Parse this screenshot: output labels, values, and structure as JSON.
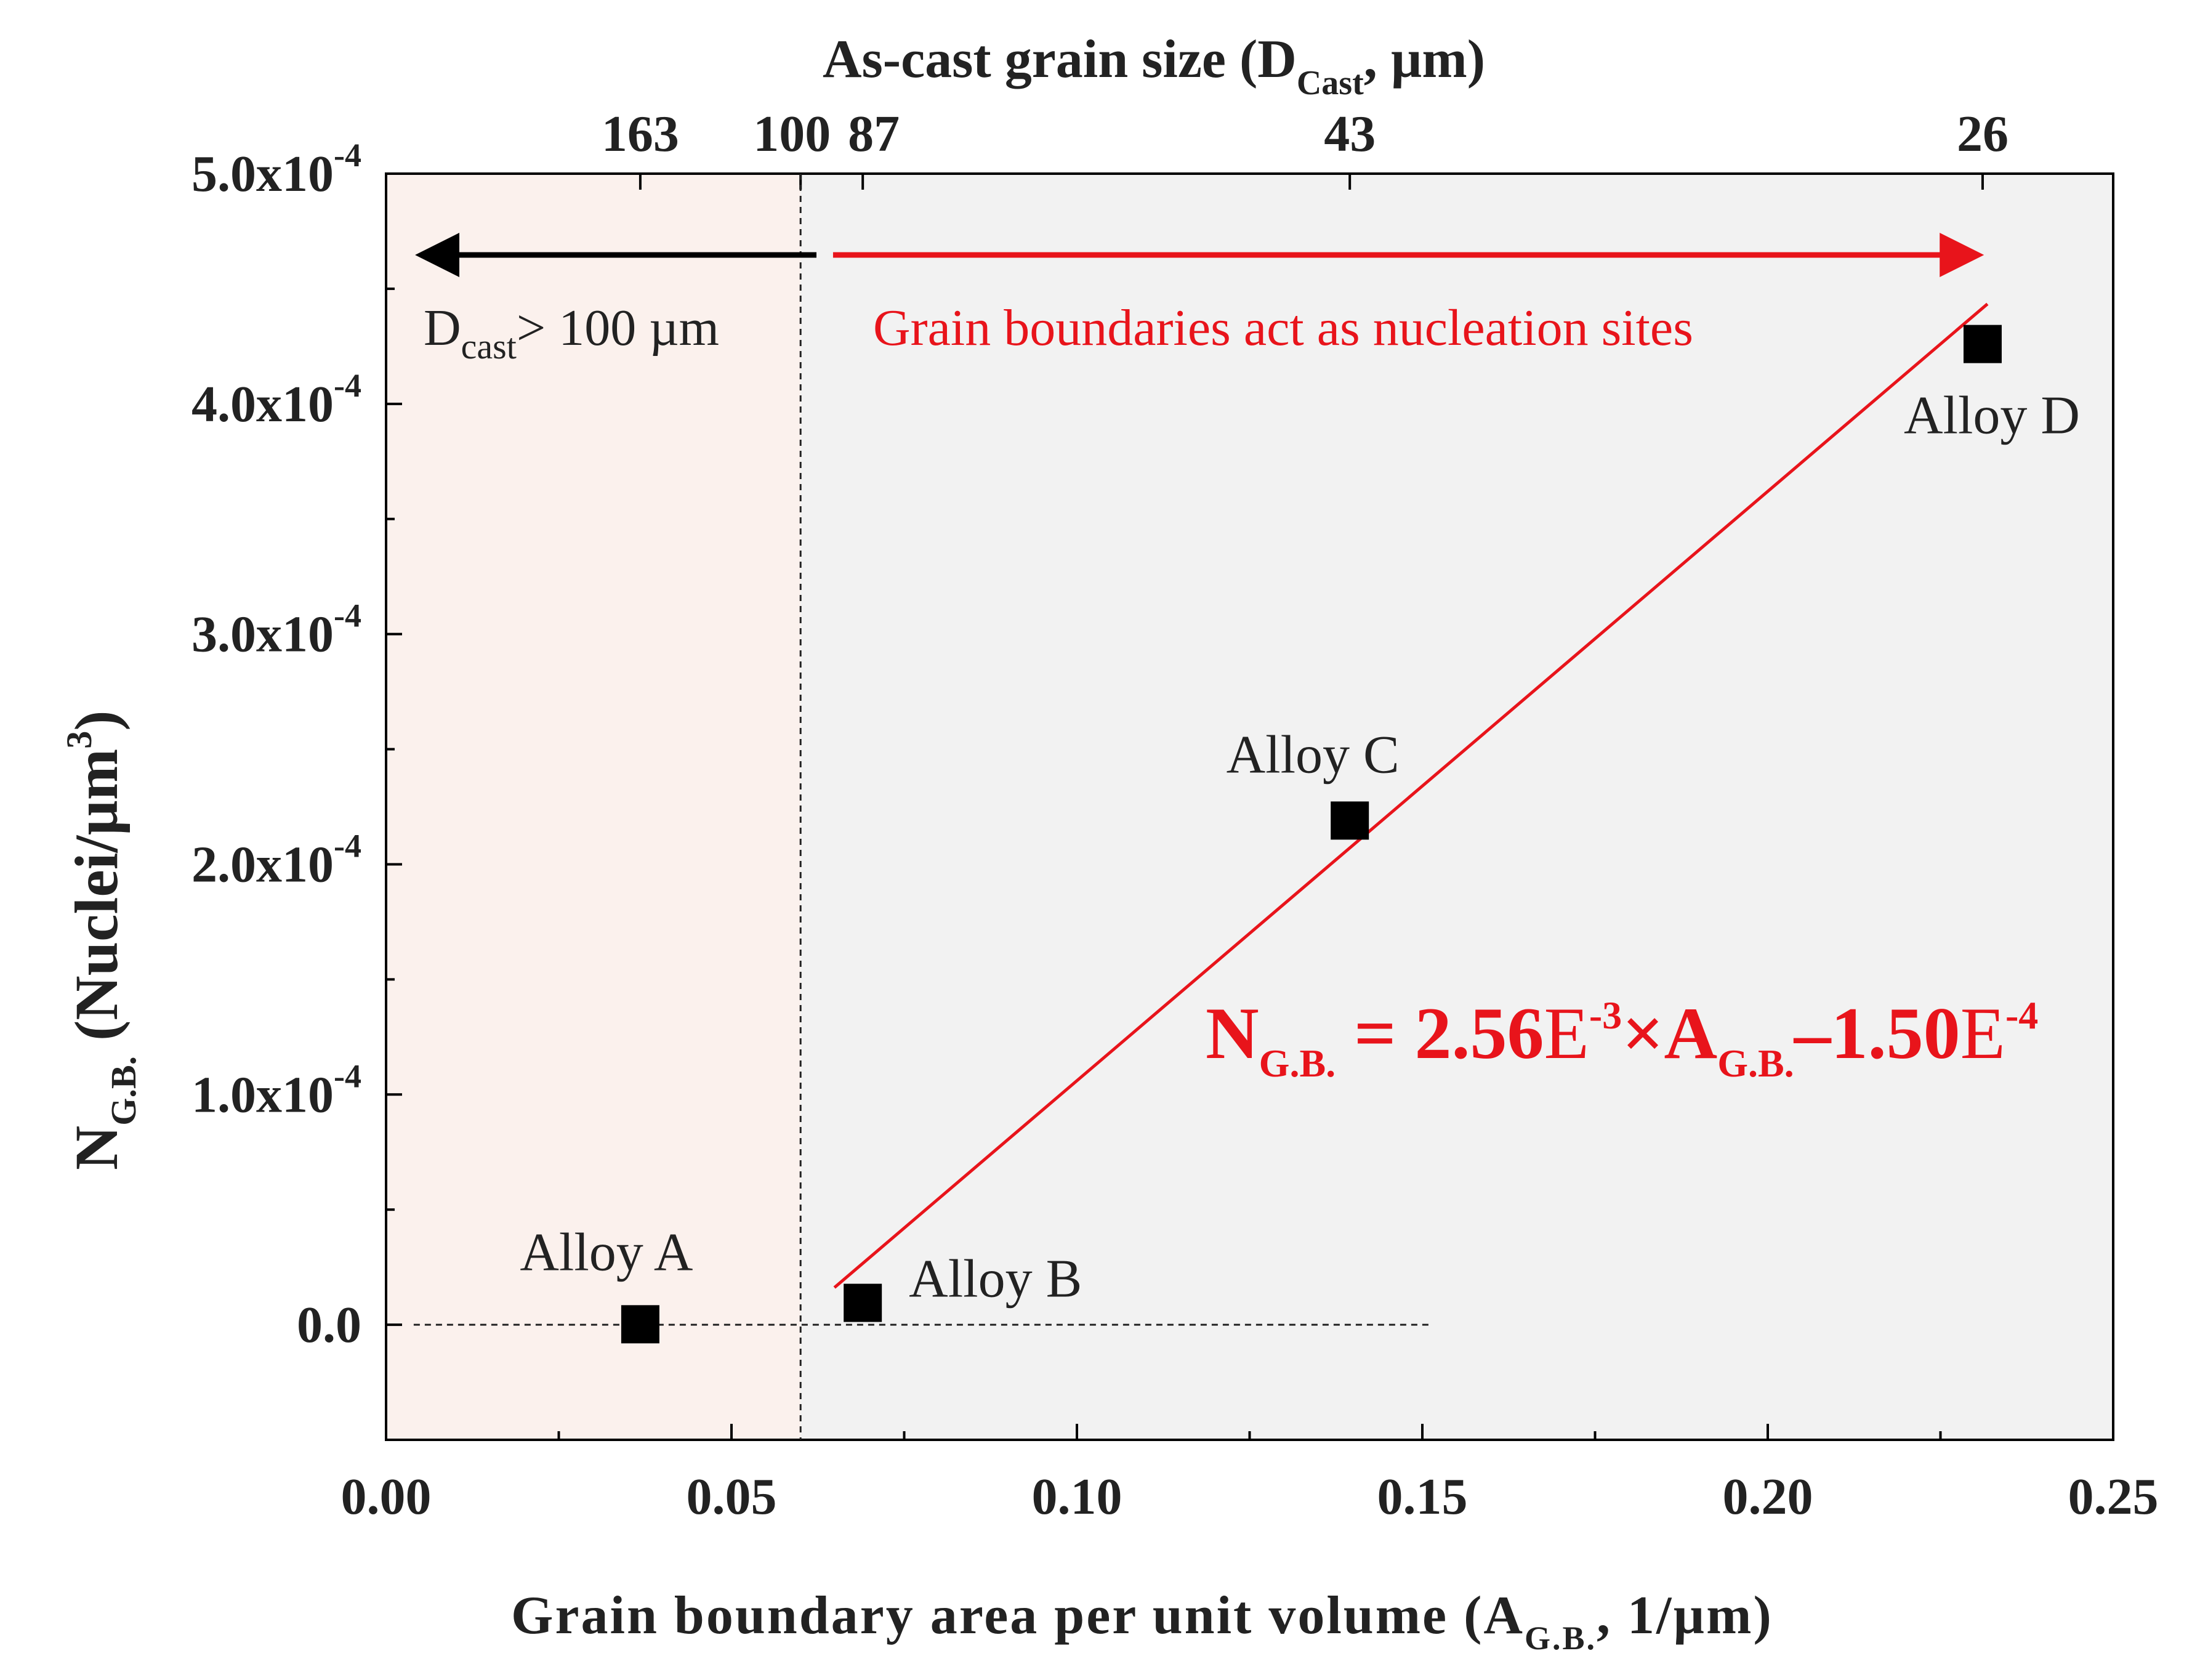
{
  "chart_data": {
    "type": "scatter",
    "x_axis": {
      "label": "Grain boundary area per unit volume",
      "label_paren_open": "(A",
      "label_sub": "G.B.",
      "label_tail": ", 1/µm)",
      "range": [
        0,
        0.25
      ],
      "ticks": [
        0.0,
        0.05,
        0.1,
        0.15,
        0.2,
        0.25
      ],
      "tick_labels": [
        "0.00",
        "0.05",
        "0.10",
        "0.15",
        "0.20",
        "0.25"
      ]
    },
    "top_axis": {
      "label_main": "As-cast grain size (D",
      "label_sub": "Cast",
      "label_tail": ", µm)",
      "ticks": [
        {
          "label": "163",
          "x": 0.0368
        },
        {
          "label": "100",
          "x": 0.06
        },
        {
          "label": "87",
          "x": 0.069
        },
        {
          "label": "43",
          "x": 0.1395
        },
        {
          "label": "26",
          "x": 0.2311
        }
      ]
    },
    "y_axis": {
      "label_main": "N",
      "label_sub": "G.B.",
      "label_tail": "(Nuclei/µm",
      "label_sup": "3",
      "label_close": ")",
      "range": [
        -5e-05,
        0.0005
      ],
      "ticks": [
        {
          "value": 0.0,
          "mant": "0.0",
          "exp": ""
        },
        {
          "value": 0.0001,
          "mant": "1.0x10",
          "exp": "-4"
        },
        {
          "value": 0.0002,
          "mant": "2.0x10",
          "exp": "-4"
        },
        {
          "value": 0.0003,
          "mant": "3.0x10",
          "exp": "-4"
        },
        {
          "value": 0.0004,
          "mant": "4.0x10",
          "exp": "-4"
        },
        {
          "value": 0.0005,
          "mant": "5.0x10",
          "exp": "-4"
        }
      ]
    },
    "points": [
      {
        "name": "Alloy A",
        "x": 0.0368,
        "y": 2e-07
      },
      {
        "name": "Alloy B",
        "x": 0.069,
        "y": 9.5e-06
      },
      {
        "name": "Alloy C",
        "x": 0.1395,
        "y": 0.000219
      },
      {
        "name": "Alloy D",
        "x": 0.2311,
        "y": 0.000426
      }
    ],
    "fit_line": {
      "slope": 0.00256,
      "intercept": -0.00015,
      "x_range": [
        0.0649,
        0.2318
      ],
      "color": "#e8141b"
    },
    "threshold_x": 0.06,
    "zero_line_x_range": [
      0.004,
      0.151
    ],
    "regions": {
      "left_fill": "#fbf1ed",
      "right_fill": "#f2f2f2"
    },
    "annotations": {
      "left_arrow_main": "D",
      "left_arrow_sub": "cast",
      "left_arrow_tail": "> 100 µm",
      "right_arrow_text": "Grain  boundaries  act as nucleation  sites",
      "equation": {
        "n": "N",
        "n_sub": "G.B.",
        "eq": " = 2.56",
        "e1": "E",
        "e1_sup": "-3",
        "times": "×A",
        "a_sub": "G.B.",
        "minus": "–1.50",
        "e2": "E",
        "e2_sup": "-4"
      }
    }
  }
}
